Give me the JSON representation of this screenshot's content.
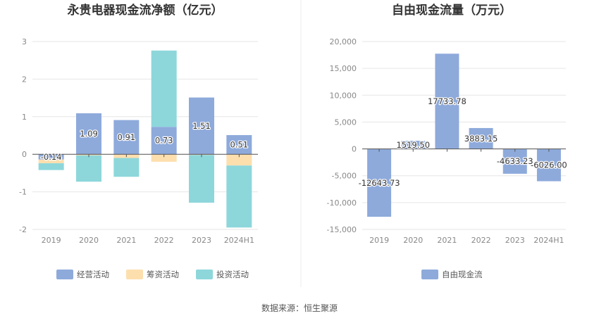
{
  "chart_data": [
    {
      "type": "bar",
      "stacked": true,
      "title": "永贵电器现金流净额（亿元）",
      "categories": [
        "2019",
        "2020",
        "2021",
        "2022",
        "2023",
        "2024H1"
      ],
      "ylim": [
        -2,
        3
      ],
      "yticks": [
        "3",
        "2",
        "1",
        "0",
        "-1",
        "-2"
      ],
      "grid": true,
      "legend_position": "bottom",
      "series": [
        {
          "name": "经营活动",
          "color": "#8eaadb",
          "values": [
            -0.14,
            1.09,
            0.91,
            0.73,
            1.51,
            0.51
          ]
        },
        {
          "name": "筹资活动",
          "color": "#fddfae",
          "values": [
            -0.1,
            -0.03,
            -0.1,
            -0.2,
            -0.02,
            -0.3
          ]
        },
        {
          "name": "投资活动",
          "color": "#8dd7db",
          "values": [
            -0.18,
            -0.7,
            -0.5,
            2.03,
            -1.27,
            -1.65
          ]
        }
      ],
      "data_labels": [
        "-0.14",
        "1.09",
        "0.91",
        "0.73",
        "1.51",
        "0.51"
      ]
    },
    {
      "type": "bar",
      "title": "自由现金流量（万元）",
      "categories": [
        "2019",
        "2020",
        "2021",
        "2022",
        "2023",
        "2024H1"
      ],
      "ylim": [
        -15000,
        20000
      ],
      "yticks": [
        "20,000",
        "15,000",
        "10,000",
        "5,000",
        "0",
        "-5,000",
        "-10,000",
        "-15,000"
      ],
      "grid": true,
      "legend_position": "bottom",
      "series": [
        {
          "name": "自由现金流",
          "color": "#8eaadb",
          "values": [
            -12643.73,
            1519.5,
            17733.78,
            3883.15,
            -4633.23,
            -6026.0
          ]
        }
      ],
      "data_labels": [
        "-12643.73",
        "1519.50",
        "17733.78",
        "3883.15",
        "-4633.23",
        "-6026.00"
      ]
    }
  ],
  "source": "数据来源：恒生聚源"
}
